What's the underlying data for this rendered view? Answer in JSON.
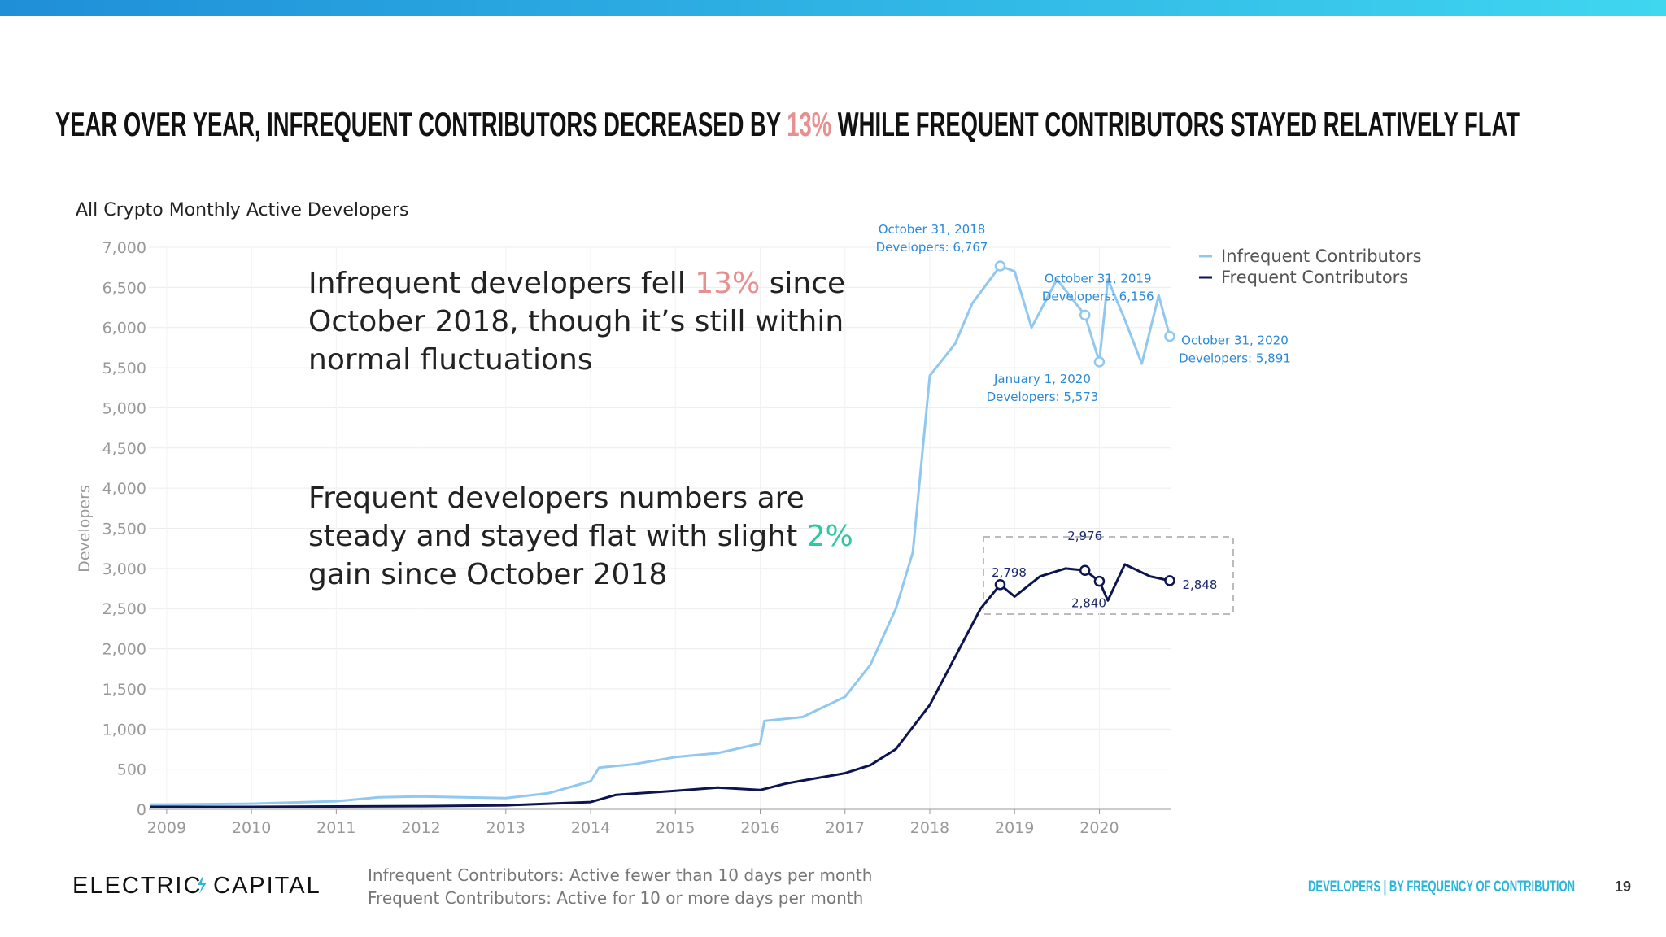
{
  "header": {
    "title": "YEAR OVER YEAR, INFREQUENT CONTRIBUTORS DECREASED BY 13% WHILE FREQUENT CONTRIBUTORS STAYED RELATIVELY FLAT",
    "title_highlight": "13%",
    "highlight_color": "#e8908f"
  },
  "callouts": [
    {
      "lines": [
        "Infrequent developers fell 13% since",
        "October 2018, though it’s still within",
        "normal fluctuations"
      ],
      "highlight": "13%",
      "highlight_color": "#e8908f"
    },
    {
      "lines": [
        "Frequent developers numbers are",
        "steady and stayed flat with slight 2%",
        "gain since October 2018"
      ],
      "highlight": "2%",
      "highlight_color": "#2ec9a0"
    }
  ],
  "chart_data": {
    "type": "line",
    "title": "All Crypto Monthly Active Developers",
    "y_label": "Developers",
    "xlim": [
      2008.79,
      2020.84
    ],
    "xticks": [
      2009,
      2010,
      2011,
      2012,
      2013,
      2014,
      2015,
      2016,
      2017,
      2018,
      2019,
      2020
    ],
    "ylim": [
      0,
      7000
    ],
    "yticks": [
      0,
      500,
      {
        "value": 1000,
        "label": "1,000"
      },
      {
        "value": 1500,
        "label": "1,500"
      },
      {
        "value": 2000,
        "label": "2,000"
      },
      {
        "value": 2500,
        "label": "2,500"
      },
      {
        "value": 3000,
        "label": "3,000"
      },
      {
        "value": 3500,
        "label": "3,500"
      },
      {
        "value": 4000,
        "label": "4,000"
      },
      {
        "value": 4500,
        "label": "4,500"
      },
      {
        "value": 5000,
        "label": "5,000"
      },
      {
        "value": 5500,
        "label": "5,500"
      },
      {
        "value": 6000,
        "label": "6,000"
      },
      {
        "value": 6500,
        "label": "6,500"
      },
      {
        "value": 7000,
        "label": "7,000"
      }
    ],
    "grid": true,
    "legend": "top-right",
    "series": [
      {
        "name": "Infrequent Contributors",
        "color": "#90c8f0",
        "x": [
          2008.8,
          2009,
          2010,
          2011,
          2011.5,
          2012,
          2012.5,
          2013,
          2013.5,
          2014,
          2014.1,
          2014.5,
          2015,
          2015.5,
          2016,
          2016.05,
          2016.5,
          2017,
          2017.3,
          2017.6,
          2017.8,
          2018,
          2018.3,
          2018.5,
          2018.83,
          2019,
          2019.2,
          2019.5,
          2019.83,
          2020,
          2020.1,
          2020.3,
          2020.5,
          2020.7,
          2020.83
        ],
        "values": [
          60,
          60,
          70,
          100,
          150,
          160,
          150,
          140,
          200,
          350,
          520,
          560,
          650,
          700,
          820,
          1100,
          1150,
          1400,
          1800,
          2500,
          3200,
          5400,
          5800,
          6300,
          6767,
          6700,
          6000,
          6600,
          6156,
          5573,
          6600,
          6100,
          5550,
          6400,
          5891
        ]
      },
      {
        "name": "Frequent Contributors",
        "color": "#0d1550",
        "x": [
          2008.8,
          2009,
          2010,
          2011,
          2012,
          2013,
          2014,
          2014.3,
          2015,
          2015.5,
          2016,
          2016.3,
          2017,
          2017.3,
          2017.6,
          2018,
          2018.3,
          2018.6,
          2018.83,
          2019,
          2019.3,
          2019.6,
          2019.83,
          2020,
          2020.1,
          2020.3,
          2020.6,
          2020.83
        ],
        "values": [
          30,
          30,
          30,
          35,
          40,
          50,
          90,
          180,
          230,
          270,
          240,
          320,
          450,
          550,
          750,
          1300,
          1900,
          2500,
          2798,
          2650,
          2900,
          3000,
          2976,
          2840,
          2600,
          3050,
          2900,
          2848
        ]
      }
    ],
    "annotations": [
      {
        "series": 0,
        "x": 2018.83,
        "y": 6767,
        "lines": [
          "October 31, 2018",
          "Developers: 6,767"
        ]
      },
      {
        "series": 0,
        "x": 2019.83,
        "y": 6156,
        "lines": [
          "October 31, 2019",
          "Developers: 6,156"
        ]
      },
      {
        "series": 0,
        "x": 2020,
        "y": 5573,
        "lines": [
          "January 1, 2020",
          "Developers: 5,573"
        ]
      },
      {
        "series": 0,
        "x": 2020.83,
        "y": 5891,
        "lines": [
          "October 31, 2020",
          "Developers: 5,891"
        ]
      },
      {
        "series": 1,
        "x": 2018.83,
        "y": 2798,
        "lines": [
          "2,798"
        ]
      },
      {
        "series": 1,
        "x": 2019.83,
        "y": 2976,
        "lines": [
          "2,976"
        ]
      },
      {
        "series": 1,
        "x": 2020,
        "y": 2840,
        "lines": [
          "2,840"
        ]
      },
      {
        "series": 1,
        "x": 2020.83,
        "y": 2848,
        "lines": [
          "2,848"
        ]
      }
    ]
  },
  "footer": {
    "logo_left": "ELECTRIC",
    "logo_right": "CAPITAL",
    "notes": [
      "Infrequent Contributors: Active fewer than 10 days per month",
      "Frequent Contributors: Active for 10 or more days per month"
    ],
    "section": "DEVELOPERS | BY FREQUENCY OF CONTRIBUTION",
    "page": "19"
  }
}
